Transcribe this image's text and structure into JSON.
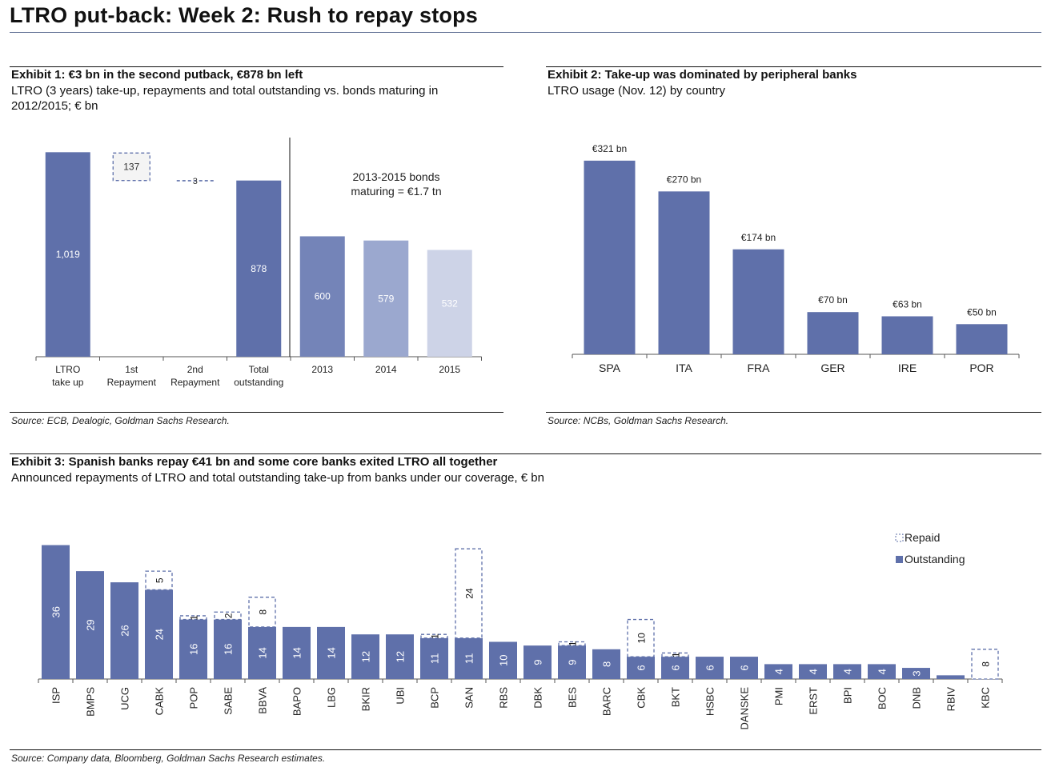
{
  "page": {
    "title": "LTRO put-back: Week 2: Rush to repay stops"
  },
  "exhibit1": {
    "title": "Exhibit 1: €3 bn in the second putback, €878 bn left",
    "subtitle": "LTRO (3 years) take-up, repayments and total outstanding vs. bonds maturing in 2012/2015; € bn",
    "source": "Source: ECB, Dealogic, Goldman Sachs Research.",
    "annotation_line1": "2013-2015 bonds",
    "annotation_line2": "maturing = €1.7 tn"
  },
  "exhibit2": {
    "title": "Exhibit 2: Take-up was dominated by peripheral banks",
    "subtitle": "LTRO usage (Nov. 12) by country",
    "source": "Source: NCBs, Goldman Sachs Research."
  },
  "exhibit3": {
    "title": "Exhibit 3: Spanish banks repay €41 bn and some core banks exited LTRO all together",
    "subtitle": "Announced repayments of LTRO and total outstanding take-up from banks under our coverage, € bn",
    "source": "Source: Company data, Bloomberg, Goldman Sachs Research estimates."
  },
  "chart_data": [
    {
      "id": "exhibit1",
      "type": "bar",
      "ylim": [
        0,
        1100
      ],
      "bars": [
        {
          "label1": "LTRO",
          "label2": "take up",
          "value": 1019,
          "value_label": "1,019",
          "style": "solid",
          "color": "#5f70aa"
        },
        {
          "label1": "1st",
          "label2": "Repayment",
          "value": 137,
          "base": 878,
          "value_label": "137",
          "style": "dashed",
          "color": "#5f70aa"
        },
        {
          "label1": "2nd",
          "label2": "Repayment",
          "value": 3,
          "base": 878,
          "value_label": "3",
          "style": "dashed",
          "color": "#5f70aa"
        },
        {
          "label1": "Total",
          "label2": "outstanding",
          "value": 878,
          "value_label": "878",
          "style": "solid",
          "color": "#5f70aa"
        },
        {
          "label1": "2013",
          "label2": "",
          "value": 600,
          "value_label": "600",
          "style": "solid",
          "color": "#7484b8"
        },
        {
          "label1": "2014",
          "label2": "",
          "value": 579,
          "value_label": "579",
          "style": "solid",
          "color": "#9ba8cf"
        },
        {
          "label1": "2015",
          "label2": "",
          "value": 532,
          "value_label": "532",
          "style": "solid",
          "color": "#cdd3e7"
        }
      ]
    },
    {
      "id": "exhibit2",
      "type": "bar",
      "ylim": [
        0,
        350
      ],
      "categories": [
        "SPA",
        "ITA",
        "FRA",
        "GER",
        "IRE",
        "POR"
      ],
      "values": [
        321,
        270,
        174,
        70,
        63,
        50
      ],
      "value_labels": [
        "€321 bn",
        "€270 bn",
        "€174 bn",
        "€70 bn",
        "€63 bn",
        "€50 bn"
      ],
      "color": "#5f70aa"
    },
    {
      "id": "exhibit3",
      "type": "bar",
      "stacked": true,
      "ylim": [
        0,
        43
      ],
      "legend": [
        "Repaid",
        "Outstanding"
      ],
      "legend_position": "top-right",
      "categories": [
        "ISP",
        "BMPS",
        "UCG",
        "CABK",
        "POP",
        "SABE",
        "BBVA",
        "BAPO",
        "LBG",
        "BKIR",
        "UBI",
        "BCP",
        "SAN",
        "RBS",
        "DBK",
        "BES",
        "BARC",
        "CBK",
        "BKT",
        "HSBC",
        "DANSKE",
        "PMI",
        "ERST",
        "BPI",
        "BOC",
        "DNB",
        "RBIV",
        "KBC"
      ],
      "series": [
        {
          "name": "Outstanding",
          "values": [
            36,
            29,
            26,
            24,
            16,
            16,
            14,
            14,
            14,
            12,
            12,
            11,
            11,
            10,
            9,
            9,
            8,
            6,
            6,
            6,
            6,
            4,
            4,
            4,
            4,
            3,
            1,
            0
          ],
          "labels": [
            "36",
            "29",
            "26",
            "24",
            "16",
            "16",
            "14",
            "14",
            "14",
            "12",
            "12",
            "11",
            "11",
            "10",
            "9",
            "9",
            "8",
            "6",
            "6",
            "6",
            "6",
            "4",
            "4",
            "4",
            "4",
            "3",
            "",
            ""
          ]
        },
        {
          "name": "Repaid",
          "values": [
            0,
            0,
            0,
            5,
            1,
            2,
            8,
            0,
            0,
            0,
            0,
            1,
            24,
            0,
            0,
            1,
            0,
            10,
            1,
            0,
            0,
            0,
            0,
            0,
            0,
            0,
            0,
            8
          ],
          "labels": [
            "",
            "",
            "",
            "5",
            "1",
            "2",
            "8",
            "",
            "",
            "",
            "",
            "1",
            "24",
            "",
            "",
            "1",
            "",
            "10",
            "1",
            "",
            "",
            "",
            "",
            "",
            "",
            "",
            "",
            "8"
          ]
        }
      ]
    }
  ]
}
